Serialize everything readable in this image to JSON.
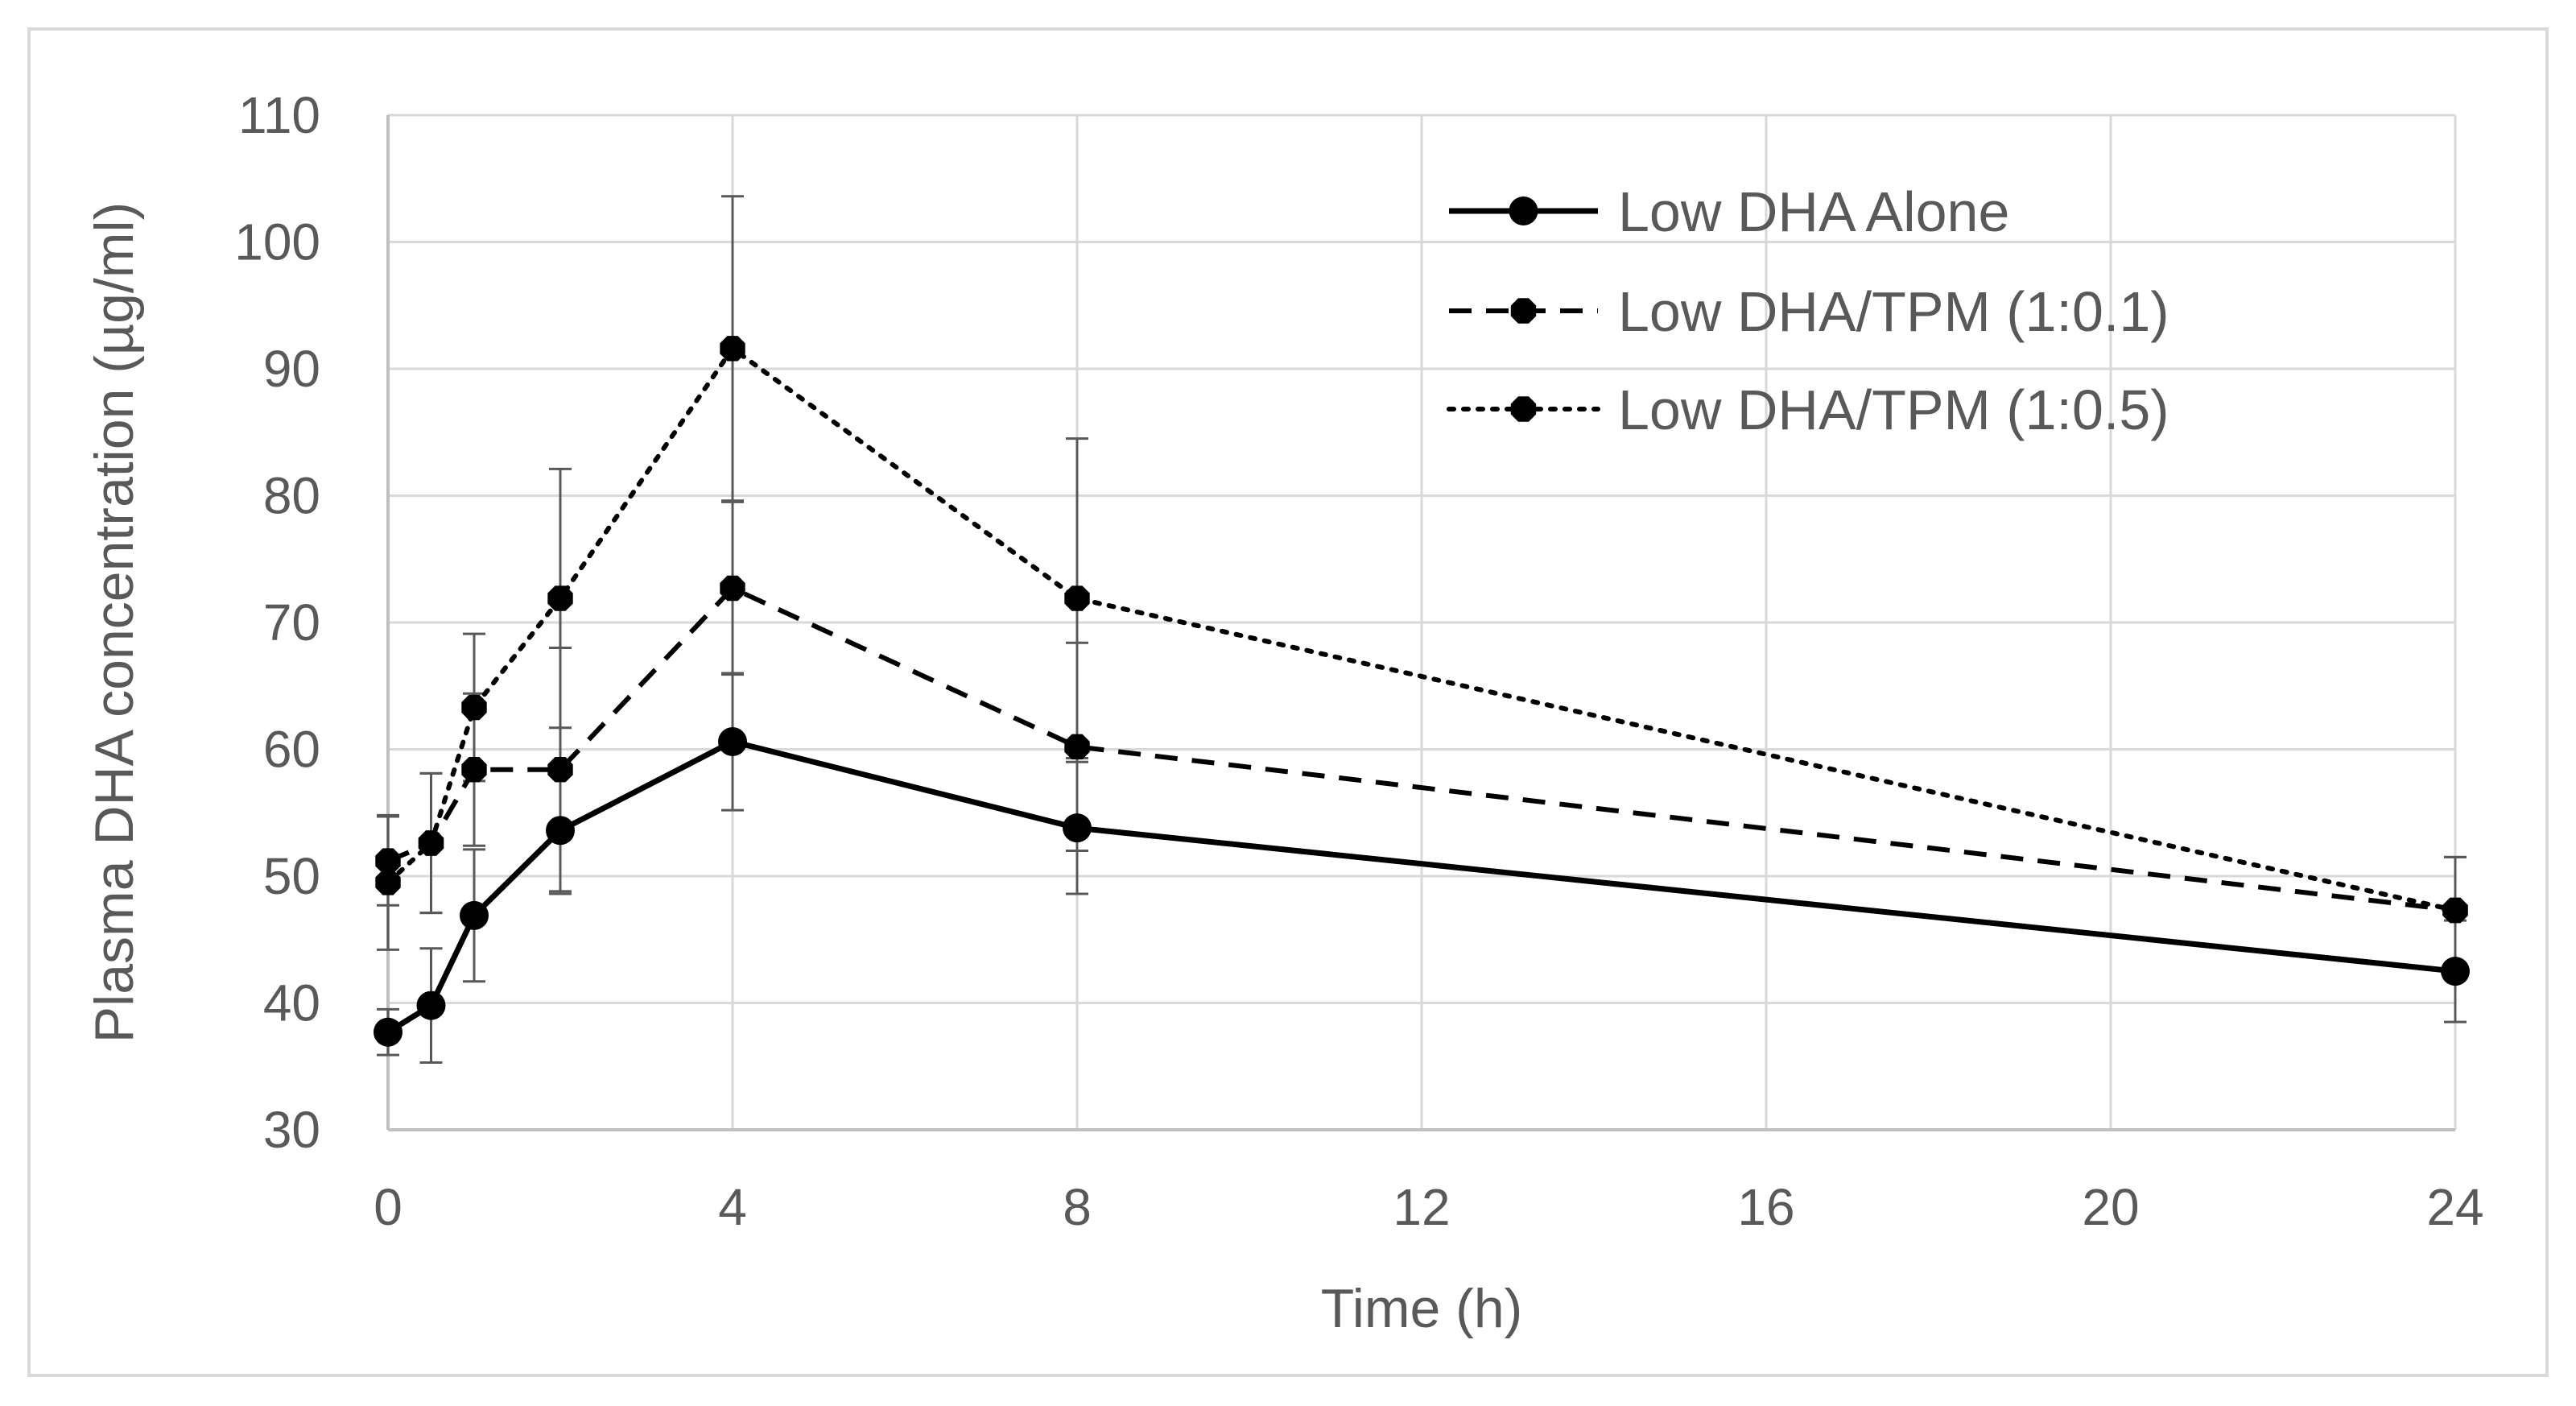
{
  "chart_data": {
    "type": "line",
    "title": "",
    "xlabel": "Time (h)",
    "ylabel": "Plasma DHA concentration (µg/ml)",
    "xlim": [
      0,
      24
    ],
    "ylim": [
      30,
      110
    ],
    "xticks": [
      0,
      4,
      8,
      12,
      16,
      20,
      24
    ],
    "yticks": [
      30,
      40,
      50,
      60,
      70,
      80,
      90,
      100,
      110
    ],
    "grid": true,
    "legend_position": "top-right",
    "x": [
      0,
      0.5,
      1,
      2,
      4,
      8,
      24
    ],
    "series": [
      {
        "name": "Low DHA Alone",
        "line_style": "solid",
        "marker": "circle",
        "values": [
          37.7,
          39.8,
          46.9,
          53.6,
          60.6,
          53.8,
          42.5
        ],
        "error": [
          1.8,
          4.5,
          5.2,
          5.0,
          5.4,
          5.2,
          4.0
        ],
        "color": "#000000"
      },
      {
        "name": "Low DHA/TPM (1:0.1)",
        "line_style": "dashed",
        "marker": "hexagon",
        "values": [
          51.2,
          52.6,
          58.4,
          58.4,
          72.7,
          60.2,
          47.3
        ],
        "error": [
          3.5,
          5.5,
          6.0,
          9.6,
          6.8,
          8.2,
          4.2
        ],
        "color": "#000000"
      },
      {
        "name": "Low DHA/TPM (1:0.5)",
        "line_style": "dotted",
        "marker": "hexagon",
        "values": [
          49.5,
          52.6,
          63.3,
          71.9,
          91.6,
          71.9,
          47.3
        ],
        "error": [
          5.3,
          5.5,
          5.8,
          10.2,
          12.0,
          12.6,
          4.2
        ],
        "color": "#000000"
      }
    ]
  }
}
